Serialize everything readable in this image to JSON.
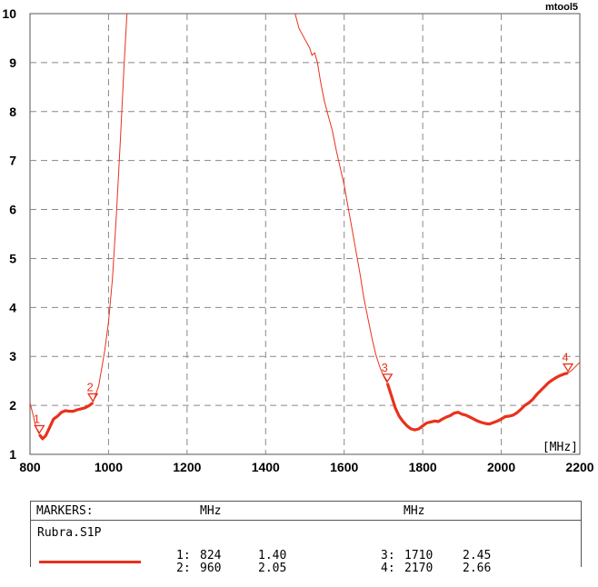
{
  "brand": "mtool5",
  "chart_data": {
    "type": "line",
    "xlabel": "[MHz]",
    "ylabel": "",
    "xlim": [
      800,
      2200
    ],
    "ylim": [
      1,
      10
    ],
    "x_ticks": [
      "800",
      "1000",
      "1200",
      "1400",
      "1600",
      "1800",
      "2000",
      "2200"
    ],
    "y_ticks": [
      "1",
      "2",
      "3",
      "4",
      "5",
      "6",
      "7",
      "8",
      "9",
      "10"
    ],
    "grid": true,
    "color": "#e8321c",
    "series": [
      {
        "values": [
          [
            800,
            2.05
          ],
          [
            808,
            1.8
          ],
          [
            815,
            1.55
          ],
          [
            824,
            1.4
          ],
          [
            832,
            1.32
          ],
          [
            840,
            1.38
          ],
          [
            850,
            1.55
          ],
          [
            860,
            1.72
          ],
          [
            870,
            1.78
          ],
          [
            880,
            1.86
          ],
          [
            890,
            1.89
          ],
          [
            900,
            1.88
          ],
          [
            910,
            1.88
          ],
          [
            920,
            1.91
          ],
          [
            930,
            1.93
          ],
          [
            940,
            1.95
          ],
          [
            950,
            1.99
          ],
          [
            960,
            2.05
          ],
          [
            975,
            2.4
          ],
          [
            990,
            3.1
          ],
          [
            1000,
            3.7
          ],
          [
            1010,
            4.6
          ],
          [
            1020,
            5.9
          ],
          [
            1030,
            7.4
          ],
          [
            1040,
            9.0
          ],
          [
            1047,
            10
          ]
        ]
      },
      {
        "values": [
          [
            1475,
            10
          ],
          [
            1485,
            9.7
          ],
          [
            1495,
            9.55
          ],
          [
            1505,
            9.4
          ],
          [
            1512,
            9.3
          ],
          [
            1518,
            9.15
          ],
          [
            1525,
            9.2
          ],
          [
            1532,
            9.0
          ],
          [
            1540,
            8.6
          ],
          [
            1550,
            8.2
          ],
          [
            1560,
            7.9
          ],
          [
            1570,
            7.6
          ],
          [
            1580,
            7.2
          ],
          [
            1590,
            6.85
          ],
          [
            1600,
            6.5
          ],
          [
            1610,
            6.05
          ],
          [
            1620,
            5.6
          ],
          [
            1630,
            5.15
          ],
          [
            1640,
            4.7
          ],
          [
            1650,
            4.2
          ],
          [
            1660,
            3.8
          ],
          [
            1670,
            3.4
          ],
          [
            1680,
            3.05
          ],
          [
            1690,
            2.8
          ],
          [
            1700,
            2.6
          ],
          [
            1710,
            2.45
          ],
          [
            1720,
            2.2
          ],
          [
            1730,
            1.95
          ],
          [
            1740,
            1.78
          ],
          [
            1750,
            1.67
          ],
          [
            1760,
            1.58
          ],
          [
            1770,
            1.52
          ],
          [
            1780,
            1.5
          ],
          [
            1790,
            1.52
          ],
          [
            1800,
            1.58
          ],
          [
            1810,
            1.64
          ],
          [
            1820,
            1.66
          ],
          [
            1830,
            1.68
          ],
          [
            1840,
            1.67
          ],
          [
            1850,
            1.72
          ],
          [
            1860,
            1.76
          ],
          [
            1870,
            1.79
          ],
          [
            1880,
            1.84
          ],
          [
            1890,
            1.86
          ],
          [
            1900,
            1.82
          ],
          [
            1910,
            1.8
          ],
          [
            1920,
            1.76
          ],
          [
            1930,
            1.72
          ],
          [
            1940,
            1.68
          ],
          [
            1950,
            1.65
          ],
          [
            1960,
            1.63
          ],
          [
            1970,
            1.62
          ],
          [
            1980,
            1.65
          ],
          [
            1990,
            1.68
          ],
          [
            2000,
            1.72
          ],
          [
            2010,
            1.77
          ],
          [
            2020,
            1.78
          ],
          [
            2030,
            1.8
          ],
          [
            2040,
            1.85
          ],
          [
            2050,
            1.92
          ],
          [
            2060,
            2.0
          ],
          [
            2070,
            2.05
          ],
          [
            2080,
            2.12
          ],
          [
            2090,
            2.22
          ],
          [
            2100,
            2.3
          ],
          [
            2110,
            2.38
          ],
          [
            2120,
            2.46
          ],
          [
            2130,
            2.52
          ],
          [
            2140,
            2.57
          ],
          [
            2150,
            2.61
          ],
          [
            2160,
            2.64
          ],
          [
            2170,
            2.66
          ],
          [
            2180,
            2.72
          ],
          [
            2190,
            2.8
          ],
          [
            2200,
            2.88
          ]
        ]
      }
    ],
    "bold_ranges": [
      [
        824,
        960
      ],
      [
        1710,
        2170
      ]
    ],
    "markers": [
      {
        "label": "1",
        "x": 824,
        "y": 1.4
      },
      {
        "label": "2",
        "x": 960,
        "y": 2.05
      },
      {
        "label": "3",
        "x": 1710,
        "y": 2.45
      },
      {
        "label": "4",
        "x": 2170,
        "y": 2.66
      }
    ]
  },
  "markers_panel": {
    "title": "MARKERS:",
    "unit_1": "MHz",
    "unit_2": "MHz",
    "file": "Rubra.S1P",
    "rows": [
      {
        "id": "1:",
        "freq": "824",
        "value": "1.40"
      },
      {
        "id": "2:",
        "freq": "960",
        "value": "2.05"
      },
      {
        "id": "3:",
        "freq": "1710",
        "value": "2.45"
      },
      {
        "id": "4:",
        "freq": "2170",
        "value": "2.66"
      }
    ]
  }
}
